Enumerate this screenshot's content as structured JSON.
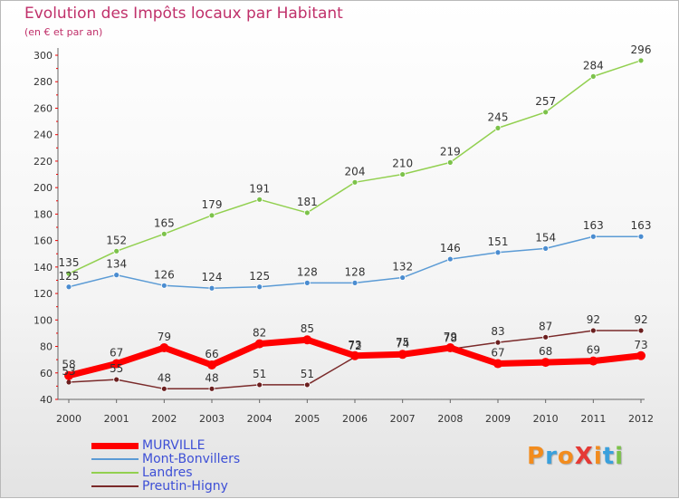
{
  "title": "Evolution des Impôts locaux par Habitant",
  "subtitle": "(en € et par an)",
  "logo_text": "ProXiti",
  "chart_data": {
    "type": "line",
    "title": "Evolution des Impôts locaux par Habitant",
    "subtitle": "(en € et par an)",
    "xlabel": "",
    "ylabel": "",
    "categories": [
      "2000",
      "2001",
      "2002",
      "2003",
      "2004",
      "2005",
      "2006",
      "2007",
      "2008",
      "2009",
      "2010",
      "2011",
      "2012"
    ],
    "ylim": [
      40,
      300
    ],
    "yticks": [
      "40",
      "60",
      "80",
      "100",
      "120",
      "140",
      "160",
      "180",
      "200",
      "220",
      "240",
      "260",
      "280",
      "300"
    ],
    "grid": false,
    "legend_position": "bottom-left",
    "series": [
      {
        "name": "MURVILLE",
        "color": "#ff0000",
        "values": [
          58,
          67,
          79,
          66,
          82,
          85,
          73,
          74,
          79,
          67,
          68,
          69,
          73
        ],
        "labels": [
          "58",
          "67",
          "79",
          "66",
          "82",
          "85",
          "73",
          "74",
          "79",
          "67",
          "68",
          "69",
          "73"
        ]
      },
      {
        "name": "Mont-Bonvillers",
        "color": "#5b9bd5",
        "values": [
          125,
          134,
          126,
          124,
          125,
          128,
          128,
          132,
          146,
          151,
          154,
          163,
          163
        ],
        "labels": [
          "125",
          "134",
          "126",
          "124",
          "125",
          "128",
          "128",
          "132",
          "146",
          "151",
          "154",
          "163",
          "163"
        ]
      },
      {
        "name": "Landres",
        "color": "#92d050",
        "values": [
          135,
          152,
          165,
          179,
          191,
          181,
          204,
          210,
          219,
          245,
          257,
          284,
          296
        ],
        "labels": [
          "135",
          "152",
          "165",
          "179",
          "191",
          "181",
          "204",
          "210",
          "219",
          "245",
          "257",
          "284",
          "296"
        ]
      },
      {
        "name": "Preutin-Higny",
        "color": "#7a2a2a",
        "values": [
          53,
          55,
          48,
          48,
          51,
          51,
          72,
          75,
          78,
          83,
          87,
          92,
          92
        ],
        "labels": [
          "53",
          "55",
          "48",
          "48",
          "51",
          "51",
          "72",
          "75",
          "78",
          "83",
          "87",
          "92",
          "92"
        ]
      }
    ]
  }
}
